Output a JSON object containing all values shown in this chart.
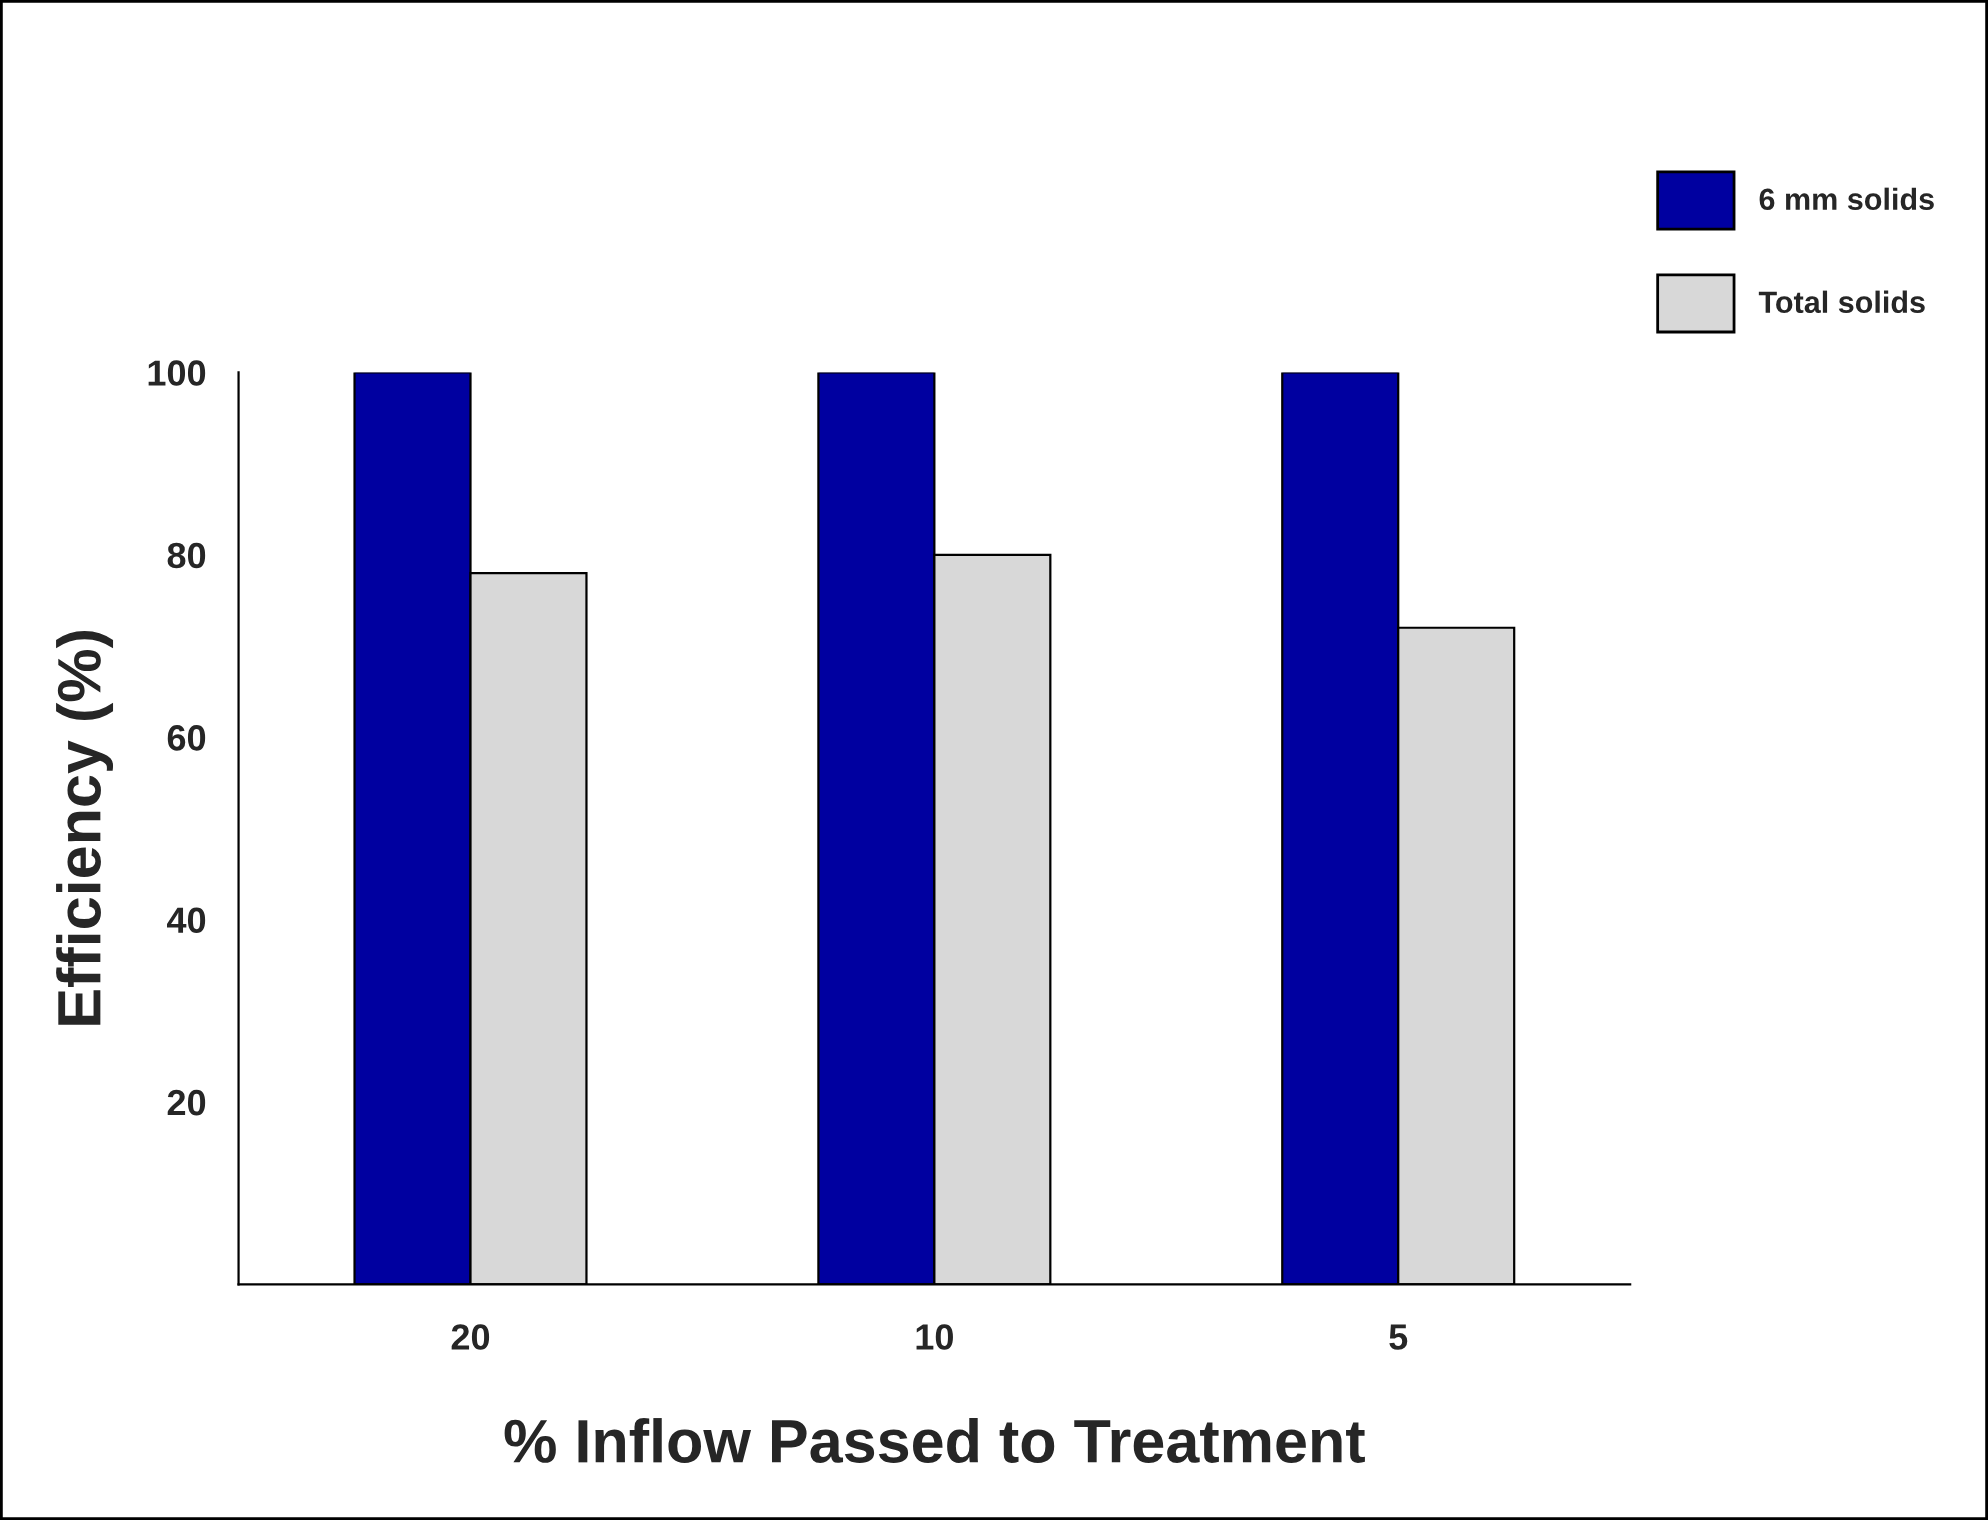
{
  "chart_data": {
    "type": "bar",
    "xlabel": "% Inflow Passed to Treatment",
    "ylabel": "Efficiency (%)",
    "categories": [
      "20",
      "10",
      "5"
    ],
    "series": [
      {
        "name": "6 mm solids",
        "color": "#0000a0",
        "values": [
          100,
          100,
          100
        ]
      },
      {
        "name": "Total solids",
        "color": "#d8d8d8",
        "values": [
          78,
          80,
          72
        ]
      }
    ],
    "ylim": [
      0,
      100
    ],
    "yticks": [
      20,
      40,
      60,
      80,
      100
    ],
    "grid": false,
    "legend": "top right"
  }
}
